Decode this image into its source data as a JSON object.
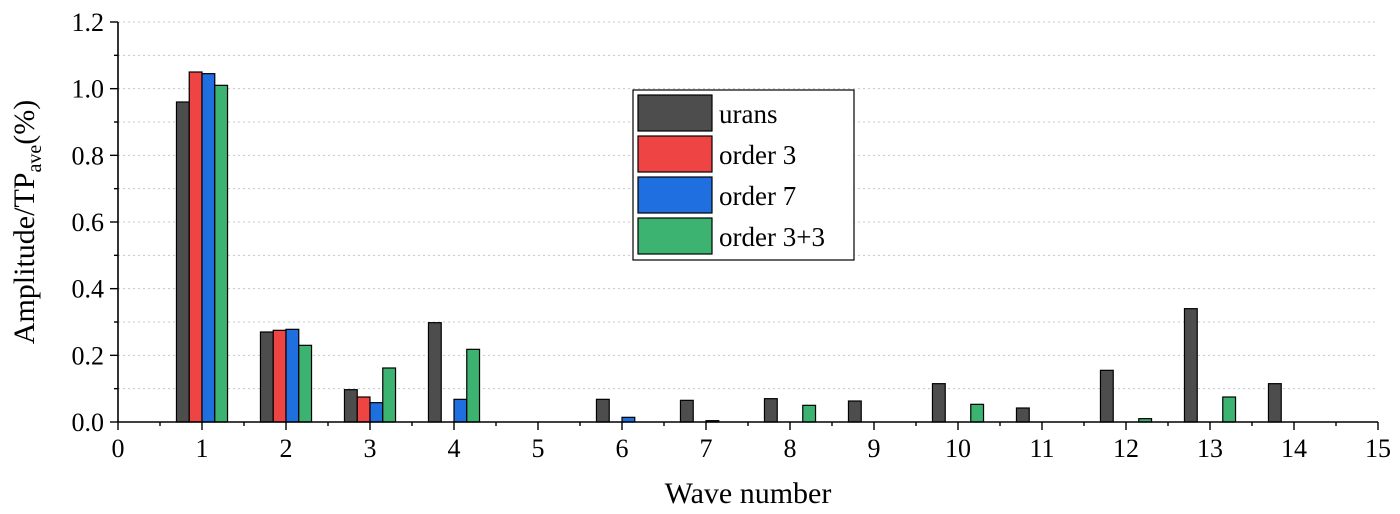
{
  "chart_data": {
    "type": "bar",
    "title": "",
    "xlabel": "Wave number",
    "ylabel": "Amplitude/TP",
    "ylabel_subscript": "ave",
    "ylabel_suffix": "(%)",
    "xlim": [
      0,
      15
    ],
    "ylim": [
      0,
      1.2
    ],
    "x_ticks": [
      "0",
      "1",
      "2",
      "3",
      "4",
      "5",
      "6",
      "7",
      "8",
      "9",
      "10",
      "11",
      "12",
      "13",
      "14",
      "15"
    ],
    "y_ticks": [
      "0.0",
      "0.2",
      "0.4",
      "0.6",
      "0.8",
      "1.0",
      "1.2"
    ],
    "grid": true,
    "legend_position": "top-center",
    "x": [
      1,
      2,
      3,
      4,
      5,
      6,
      7,
      8,
      9,
      10,
      11,
      12,
      13,
      14
    ],
    "series": [
      {
        "name": "urans",
        "color": "#4d4d4d",
        "values": [
          0.96,
          0.27,
          0.097,
          0.298,
          0,
          0.068,
          0.065,
          0.07,
          0.063,
          0.115,
          0.042,
          0.155,
          0.34,
          0.115
        ]
      },
      {
        "name": "order 3",
        "color": "#ef4444",
        "values": [
          1.05,
          0.275,
          0.075,
          0,
          0,
          0,
          0,
          0,
          0,
          0,
          0,
          0,
          0,
          0
        ]
      },
      {
        "name": "order 7",
        "color": "#1f6fe0",
        "values": [
          1.045,
          0.278,
          0.058,
          0.068,
          0,
          0.014,
          0.004,
          0,
          0,
          0,
          0,
          0,
          0,
          0
        ]
      },
      {
        "name": "order 3+3",
        "color": "#3cb371",
        "values": [
          1.01,
          0.23,
          0.162,
          0.218,
          0,
          0,
          0,
          0.05,
          0,
          0.053,
          0,
          0.01,
          0.075,
          0
        ]
      }
    ]
  }
}
